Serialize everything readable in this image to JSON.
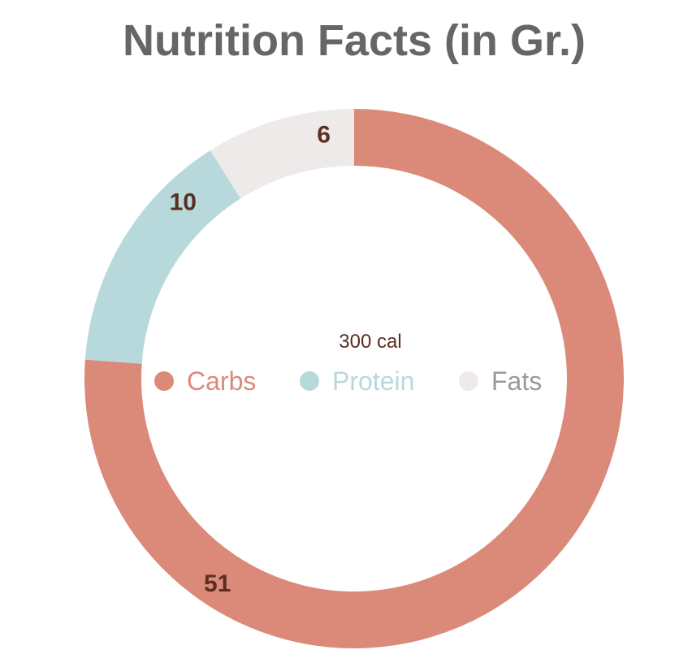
{
  "chart_data": {
    "type": "pie",
    "variant": "donut",
    "title": "Nutrition Facts (in Gr.)",
    "center_text": "300 cal",
    "categories": [
      "Carbs",
      "Protein",
      "Fats"
    ],
    "values": [
      51,
      10,
      6
    ],
    "colors": [
      "#db8a7a",
      "#b7d9db",
      "#efeaea"
    ],
    "legend_text_colors": [
      "#db8a7a",
      "#b7d9db",
      "#9a9a9a"
    ],
    "label_color": "#5a2f20",
    "title_color": "#666666",
    "legend_placement": "center"
  }
}
